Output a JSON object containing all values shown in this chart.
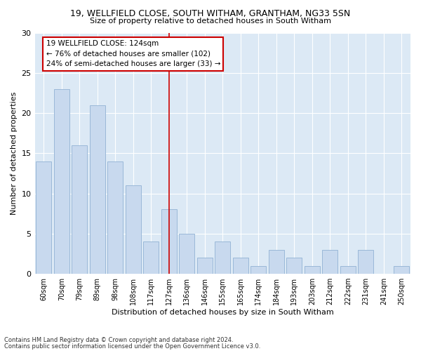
{
  "title1": "19, WELLFIELD CLOSE, SOUTH WITHAM, GRANTHAM, NG33 5SN",
  "title2": "Size of property relative to detached houses in South Witham",
  "xlabel": "Distribution of detached houses by size in South Witham",
  "ylabel": "Number of detached properties",
  "categories": [
    "60sqm",
    "70sqm",
    "79sqm",
    "89sqm",
    "98sqm",
    "108sqm",
    "117sqm",
    "127sqm",
    "136sqm",
    "146sqm",
    "155sqm",
    "165sqm",
    "174sqm",
    "184sqm",
    "193sqm",
    "203sqm",
    "212sqm",
    "222sqm",
    "231sqm",
    "241sqm",
    "250sqm"
  ],
  "values": [
    14,
    23,
    16,
    21,
    14,
    11,
    4,
    8,
    5,
    2,
    4,
    2,
    1,
    3,
    2,
    1,
    3,
    1,
    3,
    0,
    1
  ],
  "bar_color": "#c8d9ee",
  "bar_edge_color": "#9ab8d8",
  "ylim": [
    0,
    30
  ],
  "yticks": [
    0,
    5,
    10,
    15,
    20,
    25,
    30
  ],
  "ref_line_x": 7,
  "annotation_text": "19 WELLFIELD CLOSE: 124sqm\n← 76% of detached houses are smaller (102)\n24% of semi-detached houses are larger (33) →",
  "annotation_box_color": "#ffffff",
  "annotation_box_edge": "#cc0000",
  "ref_line_color": "#cc0000",
  "footer1": "Contains HM Land Registry data © Crown copyright and database right 2024.",
  "footer2": "Contains public sector information licensed under the Open Government Licence v3.0.",
  "bg_color": "#ffffff",
  "plot_bg_color": "#dce9f5"
}
